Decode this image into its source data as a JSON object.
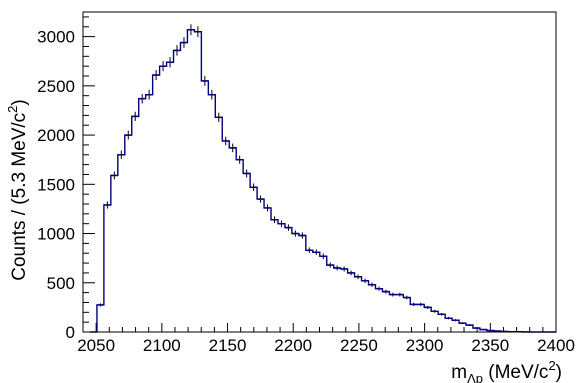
{
  "chart_data": {
    "type": "histogram",
    "title": "",
    "ylabel": "Counts / (5.3 MeV/c²)",
    "xlabel": "m_Λp (MeV/c²)",
    "xlim": [
      2040,
      2400
    ],
    "ylim": [
      0,
      3250
    ],
    "grid": false,
    "line_color": "#000080",
    "x_ticks": [
      2050,
      2100,
      2150,
      2200,
      2250,
      2300,
      2350,
      2400
    ],
    "y_ticks": [
      0,
      500,
      1000,
      1500,
      2000,
      2500,
      3000
    ],
    "bins": {
      "start": 2045.3,
      "width": 5.3,
      "counts": [
        0,
        275,
        1290,
        1590,
        1800,
        2000,
        2190,
        2370,
        2410,
        2610,
        2700,
        2740,
        2860,
        2940,
        3070,
        3050,
        2550,
        2410,
        2180,
        1940,
        1870,
        1750,
        1610,
        1470,
        1350,
        1260,
        1140,
        1100,
        1060,
        1000,
        980,
        830,
        810,
        770,
        680,
        650,
        640,
        600,
        560,
        520,
        480,
        440,
        410,
        380,
        380,
        350,
        280,
        280,
        250,
        210,
        180,
        140,
        120,
        90,
        70,
        40,
        25,
        15,
        10,
        5,
        3,
        2,
        1,
        0,
        0,
        0,
        0
      ]
    }
  },
  "labels": {
    "ylabel_main": "Counts / (5.3 MeV/c",
    "ylabel_sup": "2",
    "ylabel_end": ")",
    "xlabel_m": "m",
    "xlabel_sub": "Λp",
    "xlabel_main": " (MeV/c",
    "xlabel_sup": "2",
    "xlabel_end": ")"
  }
}
